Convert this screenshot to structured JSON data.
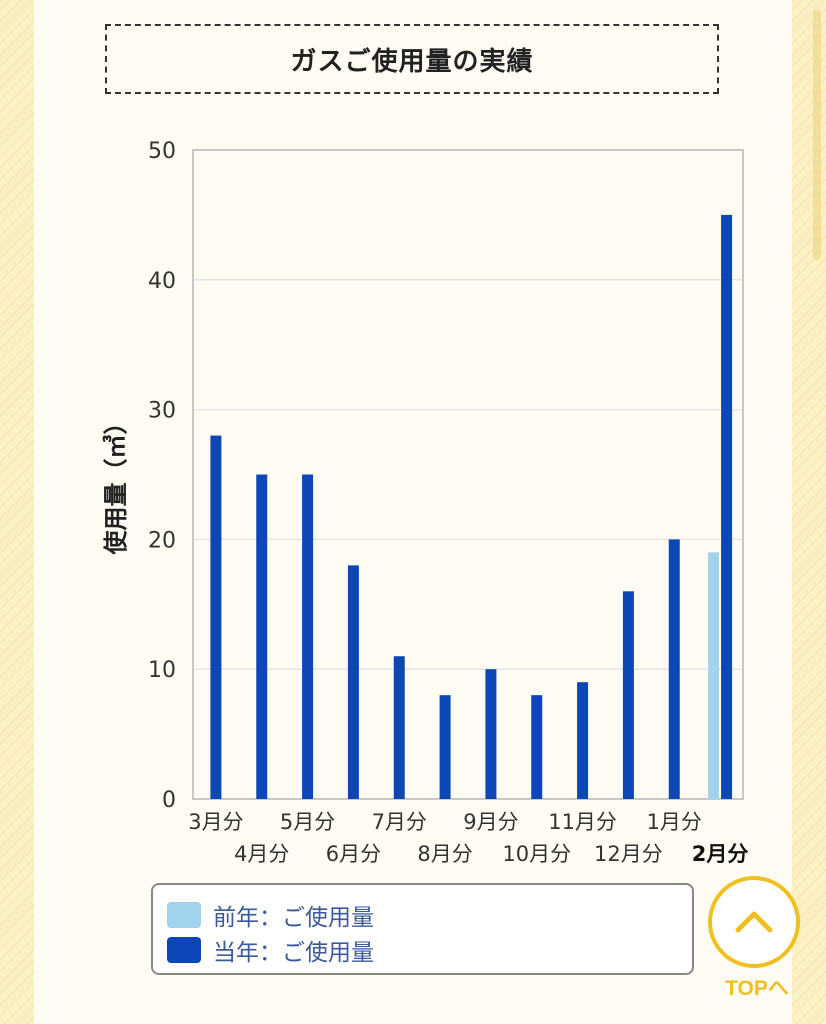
{
  "title": "ガスご使用量の実績",
  "chart_data": {
    "type": "bar",
    "ylabel": "使用量（㎥）",
    "ylim": [
      0,
      50
    ],
    "yticks": [
      0,
      10,
      20,
      30,
      40,
      50
    ],
    "grid": true,
    "categories": [
      "3月分",
      "4月分",
      "5月分",
      "6月分",
      "7月分",
      "8月分",
      "9月分",
      "10月分",
      "11月分",
      "12月分",
      "1月分",
      "2月分"
    ],
    "highlight_category": "2月分",
    "series": [
      {
        "name": "前年：ご使用量",
        "color": "#9fd3ee",
        "values": [
          null,
          null,
          null,
          null,
          null,
          null,
          null,
          null,
          null,
          null,
          null,
          19
        ]
      },
      {
        "name": "当年：ご使用量",
        "color": "#0d47b5",
        "values": [
          28,
          25,
          25,
          18,
          11,
          8,
          10,
          8,
          9,
          16,
          20,
          45
        ]
      }
    ],
    "legend_position": "bottom"
  },
  "top_button": {
    "label": "TOPへ",
    "icon": "chevron-up-icon"
  }
}
